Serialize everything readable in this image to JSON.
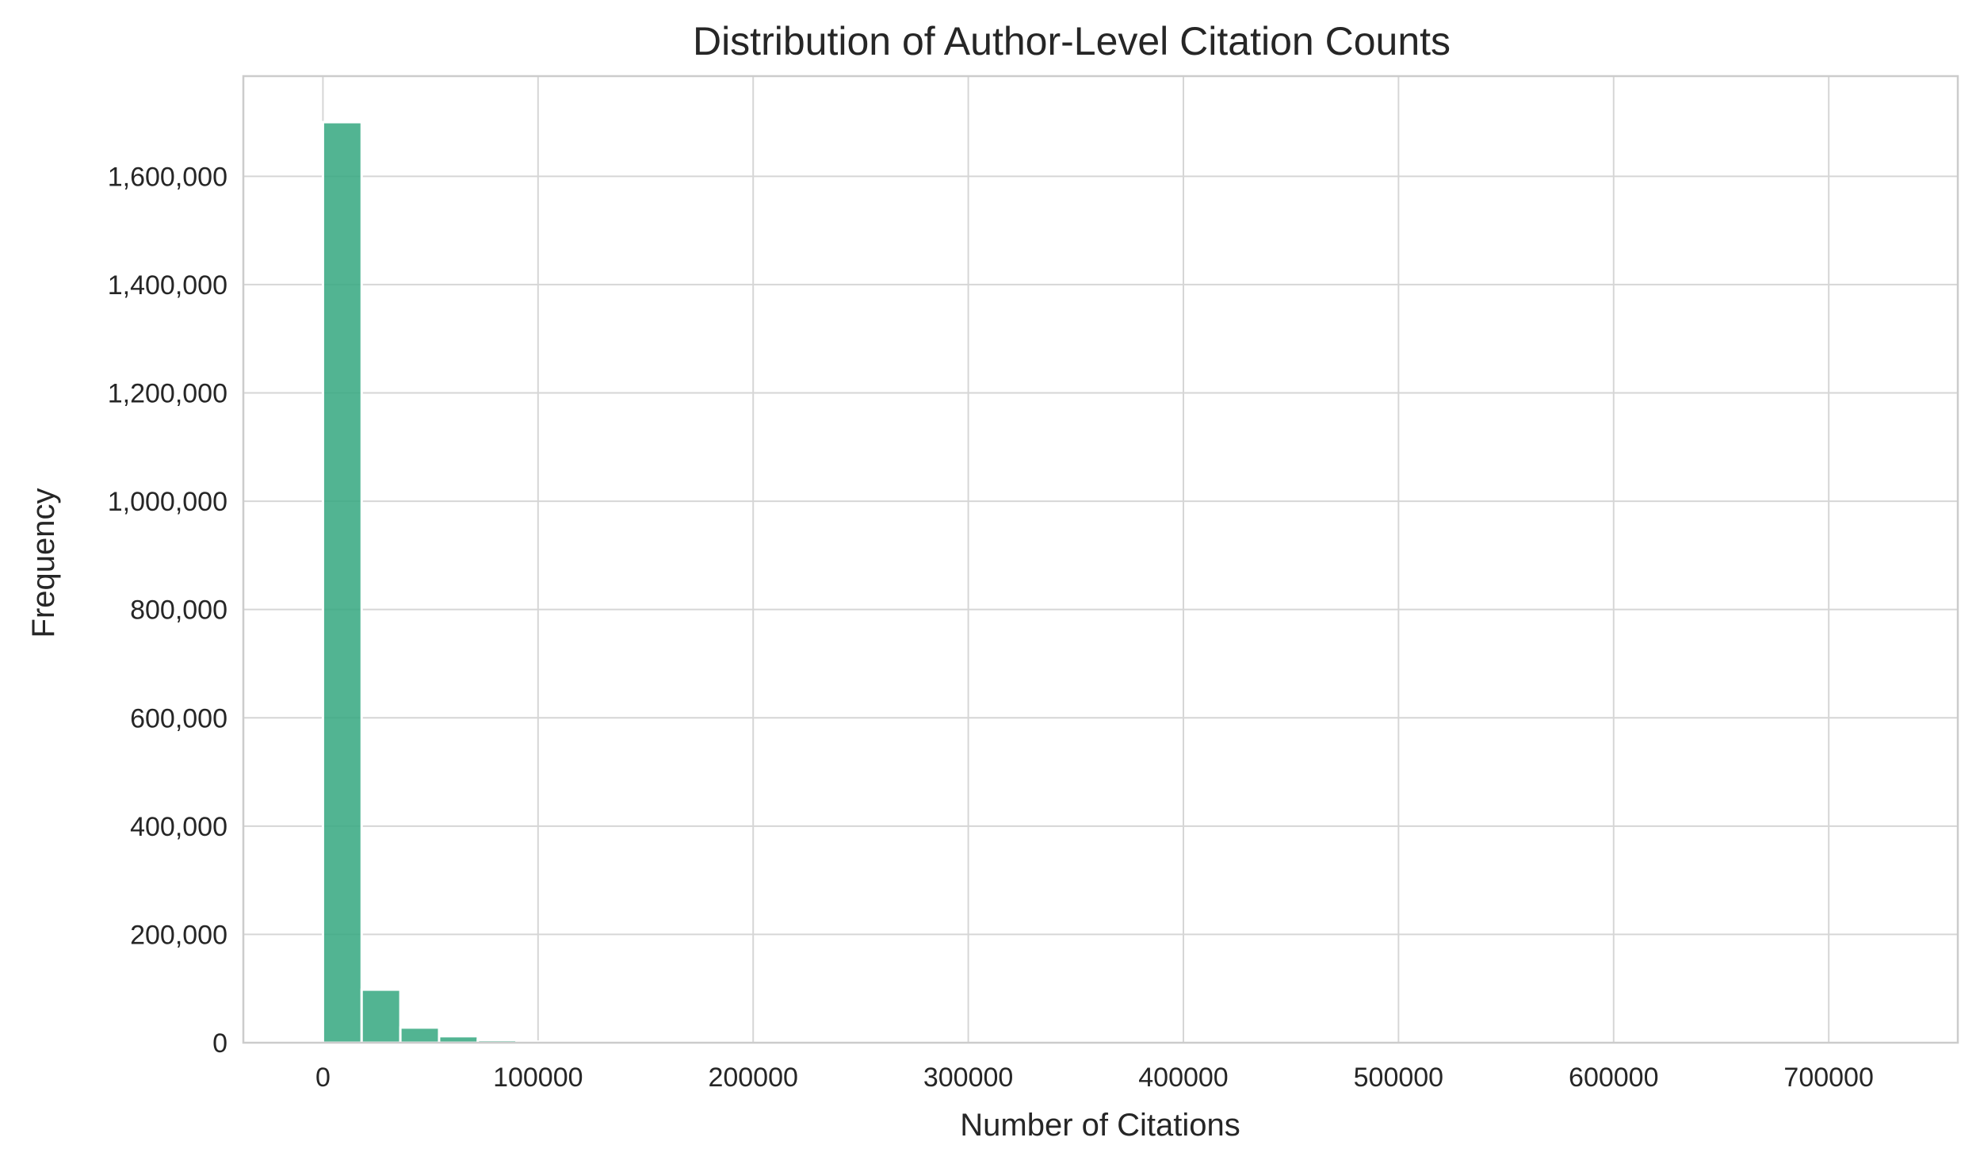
{
  "chart_data": {
    "type": "bar",
    "title": "Distribution of Author-Level Citation Counts",
    "xlabel": "Number of Citations",
    "ylabel": "Frequency",
    "xlim": [
      -37000,
      760000
    ],
    "ylim": [
      0,
      1785000
    ],
    "x_ticks": [
      0,
      100000,
      200000,
      300000,
      400000,
      500000,
      600000,
      700000
    ],
    "x_tick_labels": [
      "0",
      "100000",
      "200000",
      "300000",
      "400000",
      "500000",
      "600000",
      "700000"
    ],
    "y_ticks": [
      0,
      200000,
      400000,
      600000,
      800000,
      1000000,
      1200000,
      1400000,
      1600000
    ],
    "y_tick_labels": [
      "0",
      "200,000",
      "400,000",
      "600,000",
      "800,000",
      "1,000,000",
      "1,200,000",
      "1,400,000",
      "1,600,000"
    ],
    "grid": true,
    "bar_color": "#3aaa83",
    "bin_width": 18000,
    "bins": [
      {
        "x0": 0,
        "x1": 18000,
        "count": 1700000
      },
      {
        "x0": 18000,
        "x1": 36000,
        "count": 98000
      },
      {
        "x0": 36000,
        "x1": 54000,
        "count": 28000
      },
      {
        "x0": 54000,
        "x1": 72000,
        "count": 12000
      },
      {
        "x0": 72000,
        "x1": 90000,
        "count": 5000
      },
      {
        "x0": 90000,
        "x1": 108000,
        "count": 2000
      },
      {
        "x0": 108000,
        "x1": 126000,
        "count": 1000
      },
      {
        "x0": 126000,
        "x1": 144000,
        "count": 500
      }
    ]
  }
}
